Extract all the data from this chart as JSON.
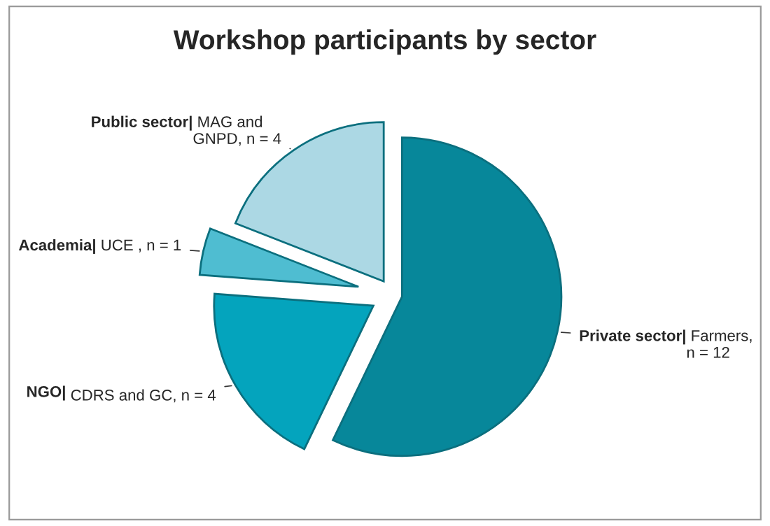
{
  "chart_data": {
    "type": "pie",
    "title": "Workshop participants by sector",
    "categories": [
      "Private sector|",
      "NGO|",
      "Academia|",
      "Public sector|"
    ],
    "values": [
      12,
      4,
      1,
      4
    ],
    "value_labels": [
      "Farmers,\nn = 12",
      "CDRS and GC, n = 4",
      "UCE , n = 1",
      "MAG and\nGNPD, n = 4"
    ],
    "colors": [
      "#07879a",
      "#04a4bd",
      "#4fbdd1",
      "#acd8e4"
    ],
    "legend": false
  }
}
